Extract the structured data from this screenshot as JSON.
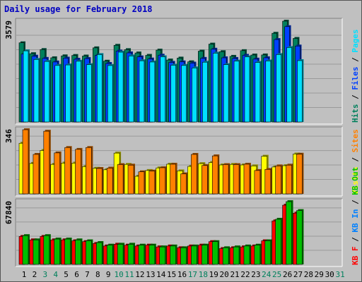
{
  "title": "Daily usage for February 2018",
  "colors": {
    "hits": "#00805c",
    "files": "#0040ff",
    "pages": "#00e0ff",
    "visits": "#ffff00",
    "sites": "#ff8000",
    "kb_in": "#00c000",
    "kb_out": "#0080ff",
    "kb_f": "#ff0000",
    "day_weekend": "#00805c",
    "day_weekday": "#000000"
  },
  "chart_data": [
    {
      "type": "bar",
      "name": "top",
      "ylim": [
        0,
        3579
      ],
      "max_label": "3579",
      "legend": [
        {
          "label": "Hits",
          "color_key": "hits"
        },
        {
          "label": "Files",
          "color_key": "files"
        },
        {
          "label": "Pages",
          "color_key": "pages"
        }
      ],
      "legend_sep": "/",
      "series": [
        {
          "name": "Hits",
          "color_key": "hits",
          "values": [
            2811,
            2424,
            2571,
            2279,
            2347,
            2361,
            2341,
            2632,
            2158,
            2722,
            2568,
            2450,
            2365,
            2551,
            2200,
            2268,
            2136,
            2515,
            2764,
            2496,
            2330,
            2532,
            2377,
            2380,
            3149,
            3579,
            2967,
            null,
            null,
            null,
            null
          ]
        },
        {
          "name": "Files",
          "color_key": "files",
          "values": [
            2410,
            2335,
            2257,
            2130,
            2266,
            2227,
            2251,
            2365,
            2077,
            2518,
            2453,
            2310,
            2235,
            2371,
            2117,
            2133,
            2090,
            2257,
            2583,
            2277,
            2254,
            2366,
            2232,
            2279,
            2926,
            3384,
            2696,
            null,
            null,
            null,
            null
          ]
        },
        {
          "name": "Pages",
          "color_key": "pages",
          "values": [
            2525,
            2220,
            2149,
            2006,
            2025,
            2157,
            2035,
            2393,
            2004,
            2478,
            2345,
            2173,
            2129,
            2314,
            2015,
            2007,
            1919,
            2122,
            2443,
            2035,
            2161,
            2310,
            2113,
            2166,
            2393,
            2643,
            2178,
            null,
            null,
            null,
            null
          ]
        }
      ]
    },
    {
      "type": "bar",
      "name": "middle",
      "ylim": [
        0,
        346
      ],
      "max_label": "346",
      "legend": [
        {
          "label": "Visits",
          "color_key": "visits"
        },
        {
          "label": "Sites",
          "color_key": "sites"
        }
      ],
      "legend_sep": "/",
      "series": [
        {
          "name": "Visits",
          "color_key": "visits",
          "values": [
            273,
            164,
            234,
            159,
            166,
            166,
            147,
            138,
            130,
            220,
            159,
            95,
            126,
            140,
            160,
            124,
            148,
            163,
            169,
            156,
            159,
            156,
            151,
            203,
            145,
            152,
            215,
            null,
            null,
            null,
            null
          ]
        },
        {
          "name": "Sites",
          "color_key": "sites",
          "values": [
            346,
            213,
            338,
            221,
            250,
            240,
            250,
            137,
            139,
            158,
            155,
            119,
            123,
            141,
            160,
            108,
            213,
            153,
            205,
            158,
            158,
            160,
            126,
            132,
            151,
            155,
            214,
            null,
            null,
            null,
            null
          ]
        }
      ]
    },
    {
      "type": "bar",
      "name": "bottom",
      "ylim": [
        0,
        67840
      ],
      "max_label": "67840",
      "legend": [
        {
          "label": "KB F",
          "color_key": "kb_f"
        },
        {
          "label": "KB In",
          "color_key": "kb_out"
        },
        {
          "label": "KB Out",
          "color_key": "kb_in"
        }
      ],
      "legend_sep": "/",
      "series": [
        {
          "name": "KB F",
          "color_key": "kb_f",
          "values": [
            30200,
            26500,
            30200,
            26500,
            26500,
            25500,
            24600,
            22600,
            19900,
            21800,
            20800,
            19900,
            20800,
            18900,
            19900,
            18000,
            19900,
            20800,
            24600,
            17100,
            18000,
            18900,
            19900,
            25500,
            47000,
            64000,
            55400,
            null,
            null,
            null,
            null
          ]
        },
        {
          "name": "KB Out",
          "color_key": "kb_in",
          "values": [
            31100,
            26500,
            31100,
            27400,
            27400,
            26500,
            25500,
            23600,
            20800,
            21800,
            21800,
            20800,
            20800,
            18900,
            19900,
            18000,
            19900,
            20800,
            24600,
            18000,
            18900,
            19900,
            20800,
            25500,
            48800,
            67840,
            58200,
            null,
            null,
            null,
            null
          ]
        }
      ]
    }
  ],
  "days": [
    "1",
    "2",
    "3",
    "4",
    "5",
    "6",
    "7",
    "8",
    "9",
    "10",
    "11",
    "12",
    "13",
    "14",
    "15",
    "16",
    "17",
    "18",
    "19",
    "20",
    "21",
    "22",
    "23",
    "24",
    "25",
    "26",
    "27",
    "28",
    "29",
    "30",
    "31"
  ],
  "weekend_days": [
    "3",
    "4",
    "10",
    "11",
    "17",
    "18",
    "24",
    "25",
    "31"
  ]
}
